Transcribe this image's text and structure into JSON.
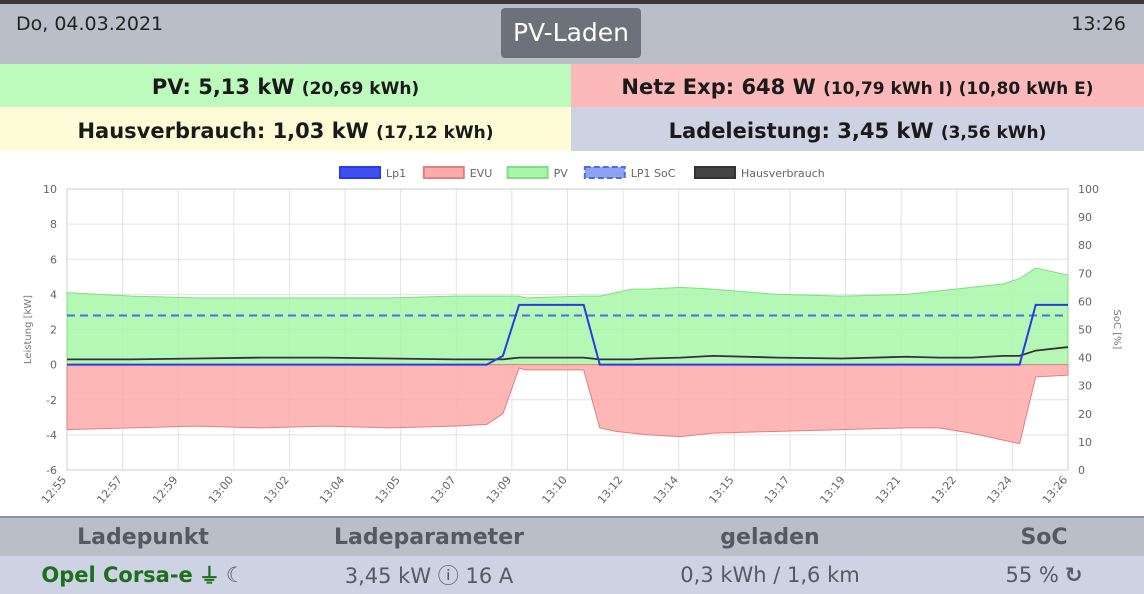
{
  "header": {
    "date": "Do, 04.03.2021",
    "title": "PV-Laden",
    "time": "13:26"
  },
  "stats": {
    "pv_label": "PV: 5,13 kW",
    "pv_sub": "(20,69 kWh)",
    "netz_label": "Netz Exp: 648 W",
    "netz_sub": "(10,79 kWh I) (10,80 kWh E)",
    "haus_label": "Hausverbrauch: 1,03 kW",
    "haus_sub": "(17,12 kWh)",
    "lade_label": "Ladeleistung: 3,45 kW",
    "lade_sub": "(3,56 kWh)"
  },
  "table": {
    "headers": [
      "Ladepunkt",
      "Ladeparameter",
      "geladen",
      "SoC"
    ],
    "row": {
      "vehicle": "Opel Corsa-e",
      "plug_icon": "⏚",
      "moon_icon": "☾",
      "params": "3,45 kW ⓘ 16 A",
      "charged": "0,3 kWh / 1,6 km",
      "soc": "55 %",
      "refresh_icon": "↻"
    }
  },
  "chart_data": {
    "type": "area",
    "xlabel": "",
    "ylabel": "Leistung [kW]",
    "y2label": "SoC [%]",
    "ylim": [
      -6,
      10
    ],
    "y2lim": [
      0,
      100
    ],
    "grid": true,
    "legend_position": "top-center",
    "x_ticks": [
      "12:55",
      "12:57",
      "12:59",
      "13:00",
      "13:02",
      "13:04",
      "13:05",
      "13:07",
      "13:09",
      "13:10",
      "13:12",
      "13:14",
      "13:15",
      "13:17",
      "13:19",
      "13:21",
      "13:22",
      "13:24",
      "13:26"
    ],
    "y_ticks": [
      10,
      8,
      6,
      4,
      2,
      0,
      -2,
      -4,
      -6
    ],
    "y2_ticks": [
      100,
      90,
      80,
      70,
      60,
      50,
      40,
      30,
      20,
      10,
      0
    ],
    "x_minutes": [
      0,
      2,
      4,
      6,
      8,
      10,
      12,
      13,
      13.5,
      14,
      14.2,
      16,
      16.5,
      17,
      17.5,
      18,
      19,
      20,
      22,
      24,
      26,
      27,
      28,
      29,
      29.5,
      30,
      31
    ],
    "series": [
      {
        "name": "Lp1",
        "color": "#2a3be0",
        "values": [
          0,
          0,
          0,
          0,
          0,
          0,
          0,
          0,
          0.5,
          3.4,
          3.4,
          3.4,
          0,
          0,
          0,
          0,
          0,
          0,
          0,
          0,
          0,
          0,
          0,
          0,
          0,
          3.4,
          3.4
        ]
      },
      {
        "name": "EVU",
        "color": "#fdaaaa",
        "values": [
          -3.7,
          -3.6,
          -3.5,
          -3.6,
          -3.5,
          -3.6,
          -3.5,
          -3.4,
          -2.8,
          -0.2,
          -0.3,
          -0.3,
          -3.6,
          -3.8,
          -3.9,
          -4.0,
          -4.1,
          -3.9,
          -3.8,
          -3.7,
          -3.6,
          -3.6,
          -3.9,
          -4.3,
          -4.5,
          -0.7,
          -0.6
        ]
      },
      {
        "name": "PV",
        "color": "#a8f7a8",
        "values": [
          4.1,
          3.9,
          3.8,
          3.8,
          3.8,
          3.8,
          3.9,
          3.9,
          3.9,
          3.9,
          3.8,
          3.9,
          3.9,
          4.1,
          4.3,
          4.3,
          4.4,
          4.3,
          4.0,
          3.9,
          4.0,
          4.2,
          4.4,
          4.6,
          4.9,
          5.5,
          5.1
        ]
      },
      {
        "name": "LP1 SoC",
        "color": "#4a6ee8",
        "values": [
          55,
          55,
          55,
          55,
          55,
          55,
          55,
          55,
          55,
          55,
          55,
          55,
          55,
          55,
          55,
          55,
          55,
          55,
          55,
          55,
          55,
          55,
          55,
          55,
          55,
          55,
          55
        ]
      },
      {
        "name": "Hausverbrauch",
        "color": "#333333",
        "values": [
          0.3,
          0.3,
          0.35,
          0.4,
          0.4,
          0.35,
          0.3,
          0.3,
          0.3,
          0.4,
          0.4,
          0.4,
          0.3,
          0.3,
          0.3,
          0.35,
          0.4,
          0.5,
          0.4,
          0.35,
          0.45,
          0.4,
          0.4,
          0.5,
          0.5,
          0.8,
          1.0
        ]
      }
    ]
  }
}
